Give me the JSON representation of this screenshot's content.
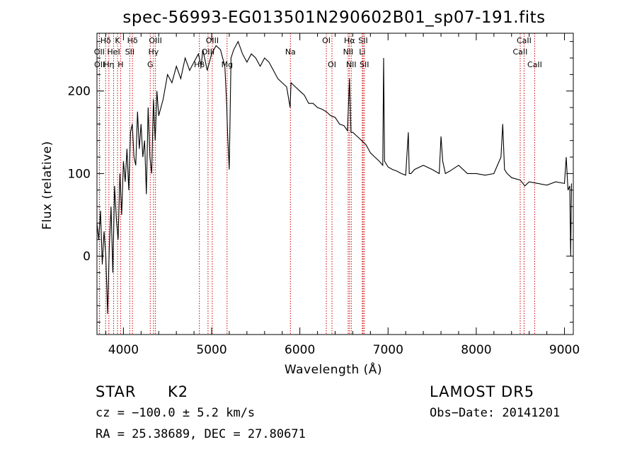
{
  "chart_data": {
    "type": "line",
    "title": "spec-56993-EG013501N290602B01_sp07-191.fits",
    "xlabel": "Wavelength (Å)",
    "ylabel": "Flux (relative)",
    "xlim": [
      3700,
      9100
    ],
    "ylim": [
      -95,
      270
    ],
    "xticks": [
      4000,
      5000,
      6000,
      7000,
      8000,
      9000
    ],
    "yticks": [
      0,
      100,
      200
    ],
    "line_color": "#000000",
    "marker_color": "#cc0000",
    "lines": [
      {
        "label": "Hδ",
        "wave": 3798,
        "row": 0
      },
      {
        "label": "K",
        "wave": 3933,
        "row": 0
      },
      {
        "label": "Hδ",
        "wave": 4102,
        "row": 0
      },
      {
        "label": "OIII",
        "wave": 4363,
        "row": 0
      },
      {
        "label": "OIII",
        "wave": 5007,
        "row": 0
      },
      {
        "label": "OI",
        "wave": 6300,
        "row": 0
      },
      {
        "label": "Hα",
        "wave": 6563,
        "row": 0
      },
      {
        "label": "SII",
        "wave": 6717,
        "row": 0
      },
      {
        "label": "CaII",
        "wave": 8542,
        "row": 0
      },
      {
        "label": "OII",
        "wave": 3727,
        "row": 1
      },
      {
        "label": "HeI",
        "wave": 3889,
        "row": 1
      },
      {
        "label": "SII",
        "wave": 4072,
        "row": 1
      },
      {
        "label": "Hγ",
        "wave": 4341,
        "row": 1
      },
      {
        "label": "OIII",
        "wave": 4959,
        "row": 1
      },
      {
        "label": "Na",
        "wave": 5893,
        "row": 1
      },
      {
        "label": "NII",
        "wave": 6548,
        "row": 1
      },
      {
        "label": "Li",
        "wave": 6708,
        "row": 1
      },
      {
        "label": "CaII",
        "wave": 8498,
        "row": 1
      },
      {
        "label": "OII",
        "wave": 3729,
        "row": 2
      },
      {
        "label": "Hη",
        "wave": 3835,
        "row": 2
      },
      {
        "label": "H",
        "wave": 3968,
        "row": 2
      },
      {
        "label": "G",
        "wave": 4304,
        "row": 2
      },
      {
        "label": "Hβ",
        "wave": 4861,
        "row": 2
      },
      {
        "label": "Mg",
        "wave": 5175,
        "row": 2
      },
      {
        "label": "OI",
        "wave": 6364,
        "row": 2
      },
      {
        "label": "NII",
        "wave": 6583,
        "row": 2
      },
      {
        "label": "SII",
        "wave": 6731,
        "row": 2
      },
      {
        "label": "CaII",
        "wave": 8662,
        "row": 2
      }
    ],
    "spectrum": {
      "x": [
        3700,
        3720,
        3740,
        3760,
        3780,
        3800,
        3820,
        3840,
        3860,
        3880,
        3900,
        3920,
        3940,
        3960,
        3980,
        4000,
        4020,
        4040,
        4060,
        4080,
        4100,
        4120,
        4140,
        4160,
        4180,
        4200,
        4220,
        4240,
        4260,
        4280,
        4300,
        4320,
        4340,
        4360,
        4380,
        4400,
        4450,
        4500,
        4550,
        4600,
        4650,
        4700,
        4750,
        4800,
        4850,
        4880,
        4900,
        4950,
        5000,
        5050,
        5100,
        5150,
        5170,
        5180,
        5200,
        5220,
        5250,
        5300,
        5350,
        5400,
        5450,
        5500,
        5550,
        5600,
        5650,
        5700,
        5750,
        5800,
        5850,
        5890,
        5900,
        5950,
        6000,
        6050,
        6100,
        6150,
        6200,
        6250,
        6300,
        6350,
        6400,
        6450,
        6500,
        6540,
        6563,
        6580,
        6600,
        6650,
        6700,
        6750,
        6800,
        6850,
        6900,
        6940,
        6950,
        6960,
        7000,
        7050,
        7100,
        7150,
        7200,
        7230,
        7240,
        7260,
        7300,
        7400,
        7500,
        7580,
        7600,
        7620,
        7650,
        7700,
        7800,
        7900,
        8000,
        8100,
        8200,
        8280,
        8300,
        8320,
        8350,
        8400,
        8500,
        8550,
        8600,
        8700,
        8800,
        8900,
        9000,
        9020,
        9040,
        9060,
        9070,
        9080
      ],
      "y": [
        40,
        20,
        55,
        -10,
        30,
        0,
        -70,
        10,
        60,
        -20,
        85,
        45,
        20,
        100,
        50,
        115,
        90,
        130,
        80,
        150,
        160,
        120,
        110,
        175,
        130,
        160,
        120,
        140,
        75,
        180,
        120,
        100,
        190,
        140,
        200,
        170,
        190,
        220,
        210,
        230,
        215,
        240,
        225,
        235,
        245,
        230,
        250,
        225,
        245,
        255,
        250,
        230,
        185,
        150,
        105,
        240,
        250,
        260,
        245,
        235,
        245,
        240,
        230,
        240,
        235,
        225,
        215,
        210,
        205,
        180,
        210,
        205,
        200,
        195,
        185,
        185,
        180,
        178,
        175,
        170,
        168,
        160,
        158,
        152,
        215,
        150,
        150,
        145,
        140,
        135,
        125,
        120,
        115,
        110,
        240,
        115,
        108,
        105,
        103,
        100,
        98,
        150,
        100,
        100,
        105,
        110,
        105,
        100,
        145,
        115,
        100,
        103,
        110,
        100,
        100,
        98,
        100,
        120,
        160,
        105,
        100,
        95,
        92,
        85,
        90,
        88,
        86,
        90,
        88,
        120,
        80,
        85,
        0,
        88
      ]
    }
  },
  "info": {
    "object_class": "STAR",
    "subclass": "K2",
    "survey": "LAMOST DR5",
    "cz": "cz = −100.0 ± 5.2 km/s",
    "obs_date": "Obs−Date: 20141201",
    "coords": "RA =  25.38689, DEC =  27.80671"
  }
}
